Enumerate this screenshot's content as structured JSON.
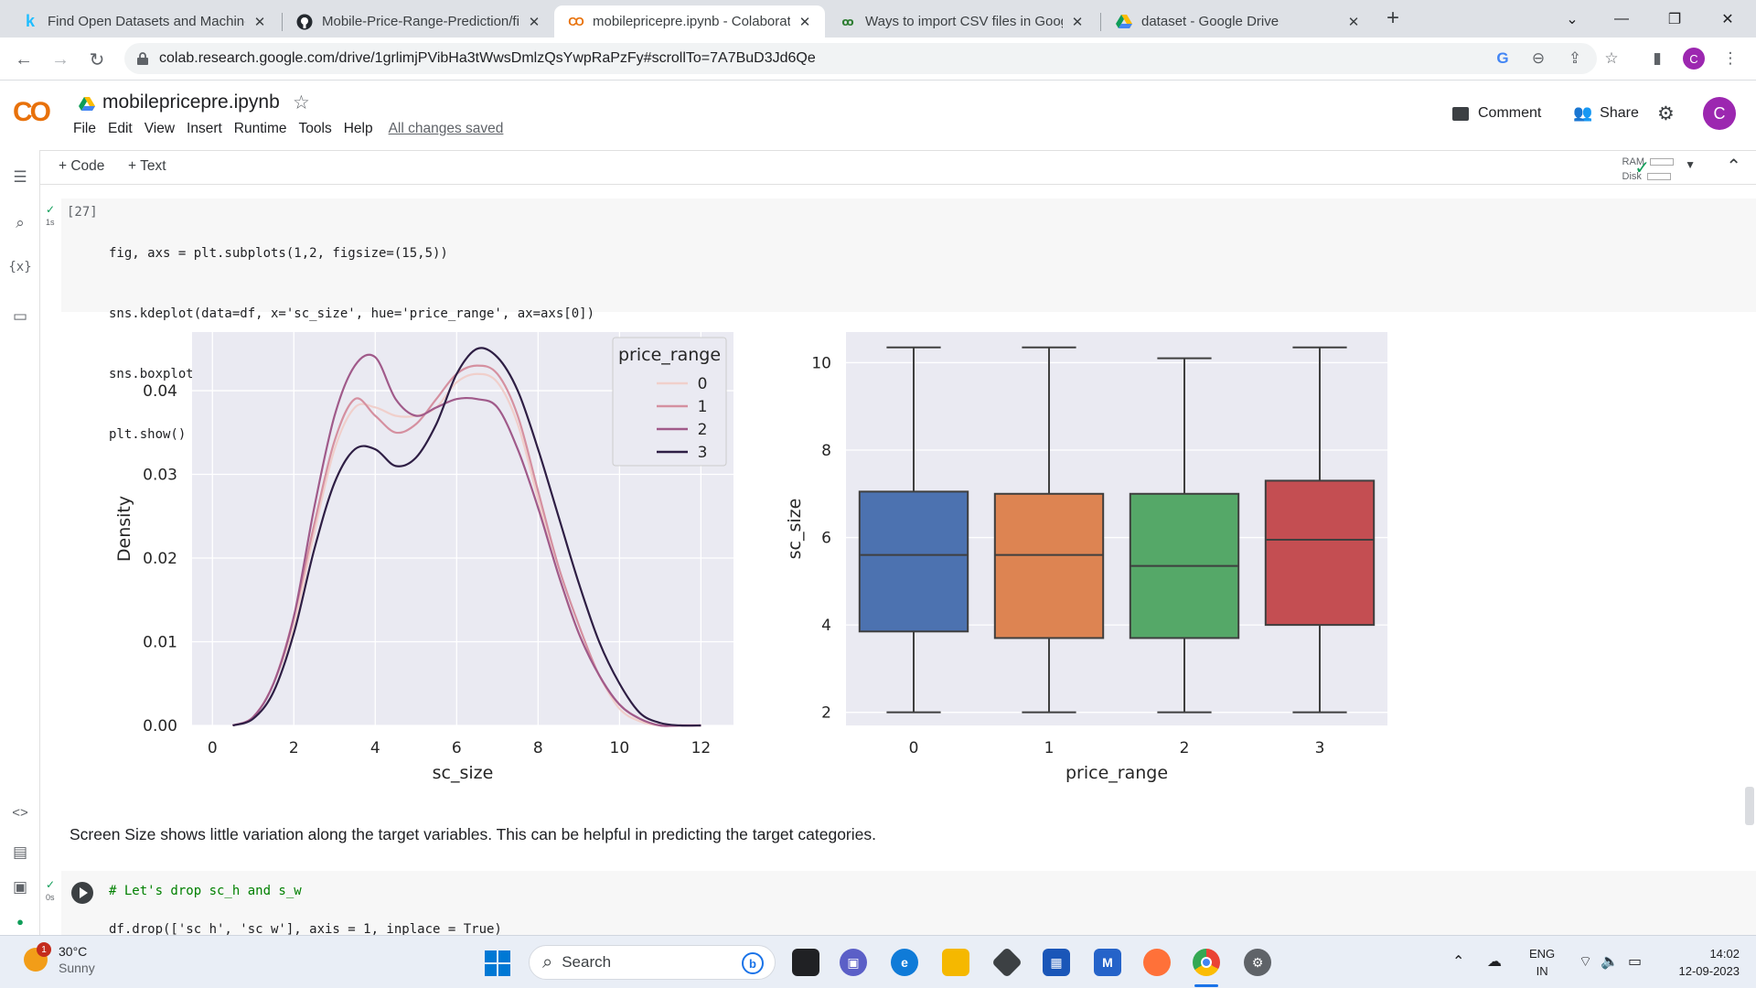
{
  "browser": {
    "tabs": [
      {
        "title": "Find Open Datasets and Machine",
        "favicon": "kaggle-k",
        "active": false
      },
      {
        "title": "Mobile-Price-Range-Prediction/fi",
        "favicon": "github",
        "active": false
      },
      {
        "title": "mobilepricepre.ipynb - Colaborat",
        "favicon": "colab",
        "active": true
      },
      {
        "title": "Ways to import CSV files in Goog",
        "favicon": "analytics",
        "active": false
      },
      {
        "title": "dataset - Google Drive",
        "favicon": "drive",
        "active": false
      }
    ],
    "tab_close": "✕",
    "new_tab": "+",
    "url": "colab.research.google.com/drive/1grlimjPVibHa3tWwsDmlzQsYwpRaPzFy#scrollTo=7A7BuD3Jd6Qe",
    "profile_initial": "C"
  },
  "colab": {
    "logo": "CO",
    "notebook_title": "mobilepricepre.ipynb",
    "menu": [
      "File",
      "Edit",
      "View",
      "Insert",
      "Runtime",
      "Tools",
      "Help"
    ],
    "save_status": "All changes saved",
    "comment_label": "Comment",
    "share_label": "Share",
    "user_initial": "C",
    "toolbar": {
      "add_code": "+ Code",
      "add_text": "+ Text",
      "ram": "RAM",
      "disk": "Disk"
    }
  },
  "cells": {
    "cell1": {
      "exec_count": "[27]",
      "time": "1s",
      "lines": [
        "fig, axs = plt.subplots(1,2, figsize=(15,5))",
        "sns.kdeplot(data=df, x='sc_size', hue='price_range', ax=axs[0])",
        "sns.boxplot(data=df, x='price_range', y='sc_size', ax=axs[1])",
        "plt.show()"
      ]
    },
    "markdown": "Screen Size shows little variation along the target variables. This can be helpful in predicting the target categories.",
    "cell2": {
      "time": "0s",
      "comment": "# Let's drop sc_h and s_w",
      "line2": "df.drop(['sc_h', 'sc_w'], axis = 1, inplace = True)"
    }
  },
  "chart_data": [
    {
      "type": "line",
      "subtype": "kde",
      "xlabel": "sc_size",
      "ylabel": "Density",
      "xlim": [
        -0.5,
        12.8
      ],
      "ylim": [
        0,
        0.047
      ],
      "xticks": [
        0,
        2,
        4,
        6,
        8,
        10,
        12
      ],
      "yticks": [
        0.0,
        0.01,
        0.02,
        0.03,
        0.04
      ],
      "ytick_labels": [
        "0.00",
        "0.01",
        "0.02",
        "0.03",
        "0.04"
      ],
      "grid": true,
      "legend": {
        "title": "price_range",
        "position": "top-right"
      },
      "x": [
        0.5,
        1,
        1.5,
        2,
        2.5,
        3,
        3.5,
        4,
        4.5,
        5,
        5.5,
        6,
        6.5,
        7,
        7.5,
        8,
        8.5,
        9,
        9.5,
        10,
        10.5,
        11,
        11.5,
        12
      ],
      "series": [
        {
          "name": "0",
          "color": "#f0cfcb",
          "values": [
            0.0,
            0.001,
            0.005,
            0.012,
            0.023,
            0.033,
            0.038,
            0.038,
            0.037,
            0.037,
            0.038,
            0.041,
            0.042,
            0.041,
            0.036,
            0.027,
            0.018,
            0.011,
            0.006,
            0.002,
            0.0005,
            0.0,
            0.0,
            0.0
          ]
        },
        {
          "name": "1",
          "color": "#d590a0",
          "values": [
            0.0,
            0.001,
            0.005,
            0.013,
            0.024,
            0.034,
            0.039,
            0.037,
            0.035,
            0.036,
            0.039,
            0.042,
            0.043,
            0.042,
            0.037,
            0.028,
            0.019,
            0.012,
            0.006,
            0.0025,
            0.0008,
            0.0,
            0.0,
            0.0
          ]
        },
        {
          "name": "2",
          "color": "#a05a8a",
          "values": [
            0.0,
            0.001,
            0.005,
            0.013,
            0.026,
            0.037,
            0.043,
            0.044,
            0.039,
            0.037,
            0.038,
            0.039,
            0.039,
            0.038,
            0.033,
            0.026,
            0.018,
            0.011,
            0.006,
            0.0025,
            0.0008,
            0.0,
            0.0,
            0.0
          ]
        },
        {
          "name": "3",
          "color": "#2e1e44",
          "values": [
            0.0,
            0.0008,
            0.004,
            0.011,
            0.021,
            0.029,
            0.033,
            0.033,
            0.031,
            0.032,
            0.036,
            0.042,
            0.045,
            0.044,
            0.04,
            0.033,
            0.025,
            0.017,
            0.01,
            0.005,
            0.0015,
            0.0003,
            0.0,
            0.0
          ]
        }
      ]
    },
    {
      "type": "box",
      "xlabel": "price_range",
      "ylabel": "sc_size",
      "categories": [
        "0",
        "1",
        "2",
        "3"
      ],
      "ylim": [
        1.7,
        10.7
      ],
      "yticks": [
        2,
        4,
        6,
        8,
        10
      ],
      "grid": true,
      "boxes": [
        {
          "category": "0",
          "color": "#4c72b0",
          "min": 2.0,
          "q1": 3.85,
          "median": 5.6,
          "q3": 7.05,
          "max": 10.35
        },
        {
          "category": "1",
          "color": "#dd8452",
          "min": 2.0,
          "q1": 3.7,
          "median": 5.6,
          "q3": 7.0,
          "max": 10.35
        },
        {
          "category": "2",
          "color": "#55a868",
          "min": 2.0,
          "q1": 3.7,
          "median": 5.35,
          "q3": 7.0,
          "max": 10.1
        },
        {
          "category": "3",
          "color": "#c44e52",
          "min": 2.0,
          "q1": 4.0,
          "median": 5.95,
          "q3": 7.3,
          "max": 10.35
        }
      ]
    }
  ],
  "taskbar": {
    "weather_temp": "30°C",
    "weather_desc": "Sunny",
    "weather_badge": "1",
    "search_label": "Search",
    "lang_1": "ENG",
    "lang_2": "IN",
    "time": "14:02",
    "date": "12-09-2023"
  }
}
